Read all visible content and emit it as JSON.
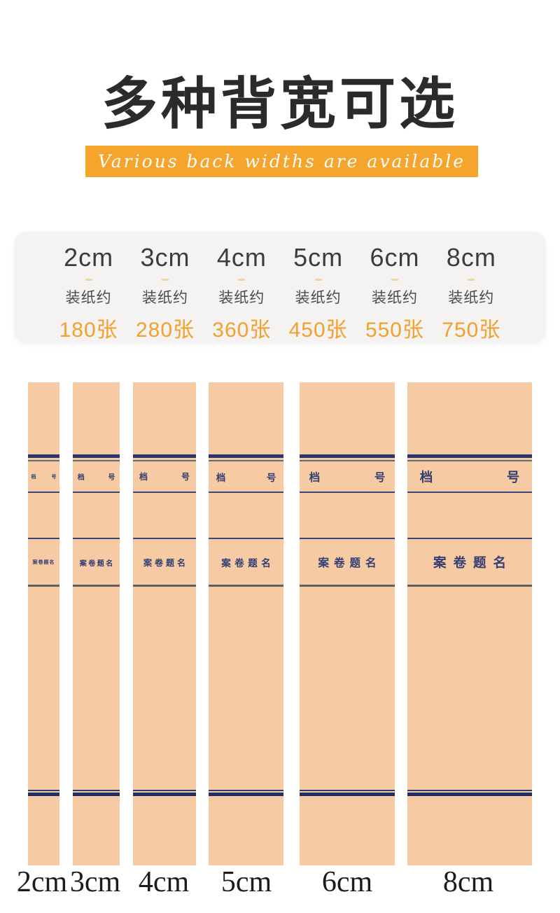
{
  "header": {
    "title": "多种背宽可选",
    "subtitle": "Various back widths are available"
  },
  "size_card": {
    "capacity_prefix": "装纸约",
    "columns": [
      {
        "size": "2cm",
        "capacity": "180张"
      },
      {
        "size": "3cm",
        "capacity": "280张"
      },
      {
        "size": "4cm",
        "capacity": "360张"
      },
      {
        "size": "5cm",
        "capacity": "450张"
      },
      {
        "size": "6cm",
        "capacity": "550张"
      },
      {
        "size": "8cm",
        "capacity": "750张"
      }
    ]
  },
  "spines": {
    "file_number_left": "档",
    "file_number_right": "号",
    "title_label": "案卷题名",
    "items": [
      {
        "label": "2cm"
      },
      {
        "label": "3cm"
      },
      {
        "label": "4cm"
      },
      {
        "label": "5cm"
      },
      {
        "label": "6cm"
      },
      {
        "label": "8cm"
      }
    ]
  },
  "colors": {
    "accent_orange": "#f5a42c",
    "capacity_orange": "#f2a02e",
    "kraft_paper": "#f6caa2",
    "navy_line": "#28376f",
    "spine_text_navy": "#333e73",
    "title_black": "#2b2b2b",
    "card_background": "#f4f3f1"
  }
}
